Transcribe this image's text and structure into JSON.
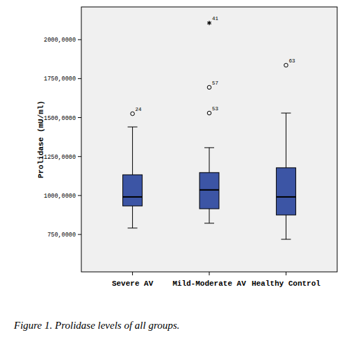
{
  "chart_data": {
    "type": "box",
    "y_label": "Prolidase (mU/ml)",
    "caption": "Figure 1. Prolidase levels of all groups.",
    "color": "#3c55a5",
    "categories": [
      "Severe AV",
      "Mild-Moderate AV",
      "Healthy Control"
    ],
    "boxes": [
      {
        "min": 791,
        "q1": 933,
        "median": 991,
        "q3": 1133,
        "max": 1440,
        "outliers": [
          {
            "value": 1525,
            "label": "24",
            "marker": "circle"
          }
        ]
      },
      {
        "min": 822,
        "q1": 915,
        "median": 1036,
        "q3": 1147,
        "max": 1307,
        "outliers": [
          {
            "value": 1529,
            "label": "53",
            "marker": "circle"
          },
          {
            "value": 1694,
            "label": "57",
            "marker": "circle"
          },
          {
            "value": 2107,
            "label": "41",
            "marker": "star"
          }
        ]
      },
      {
        "min": 719,
        "q1": 875,
        "median": 991,
        "q3": 1178,
        "max": 1529,
        "outliers": [
          {
            "value": 1836,
            "label": "63",
            "marker": "circle"
          }
        ]
      }
    ],
    "ylim": [
      510,
      2210
    ],
    "yticks": [
      {
        "value": 750,
        "label": "750,0000"
      },
      {
        "value": 1000,
        "label": "1000,0000"
      },
      {
        "value": 1250,
        "label": "1250,0000"
      },
      {
        "value": 1500,
        "label": "1500,0000"
      },
      {
        "value": 1750,
        "label": "1750,0000"
      },
      {
        "value": 2000,
        "label": "2000,0000"
      }
    ],
    "grid": false
  }
}
